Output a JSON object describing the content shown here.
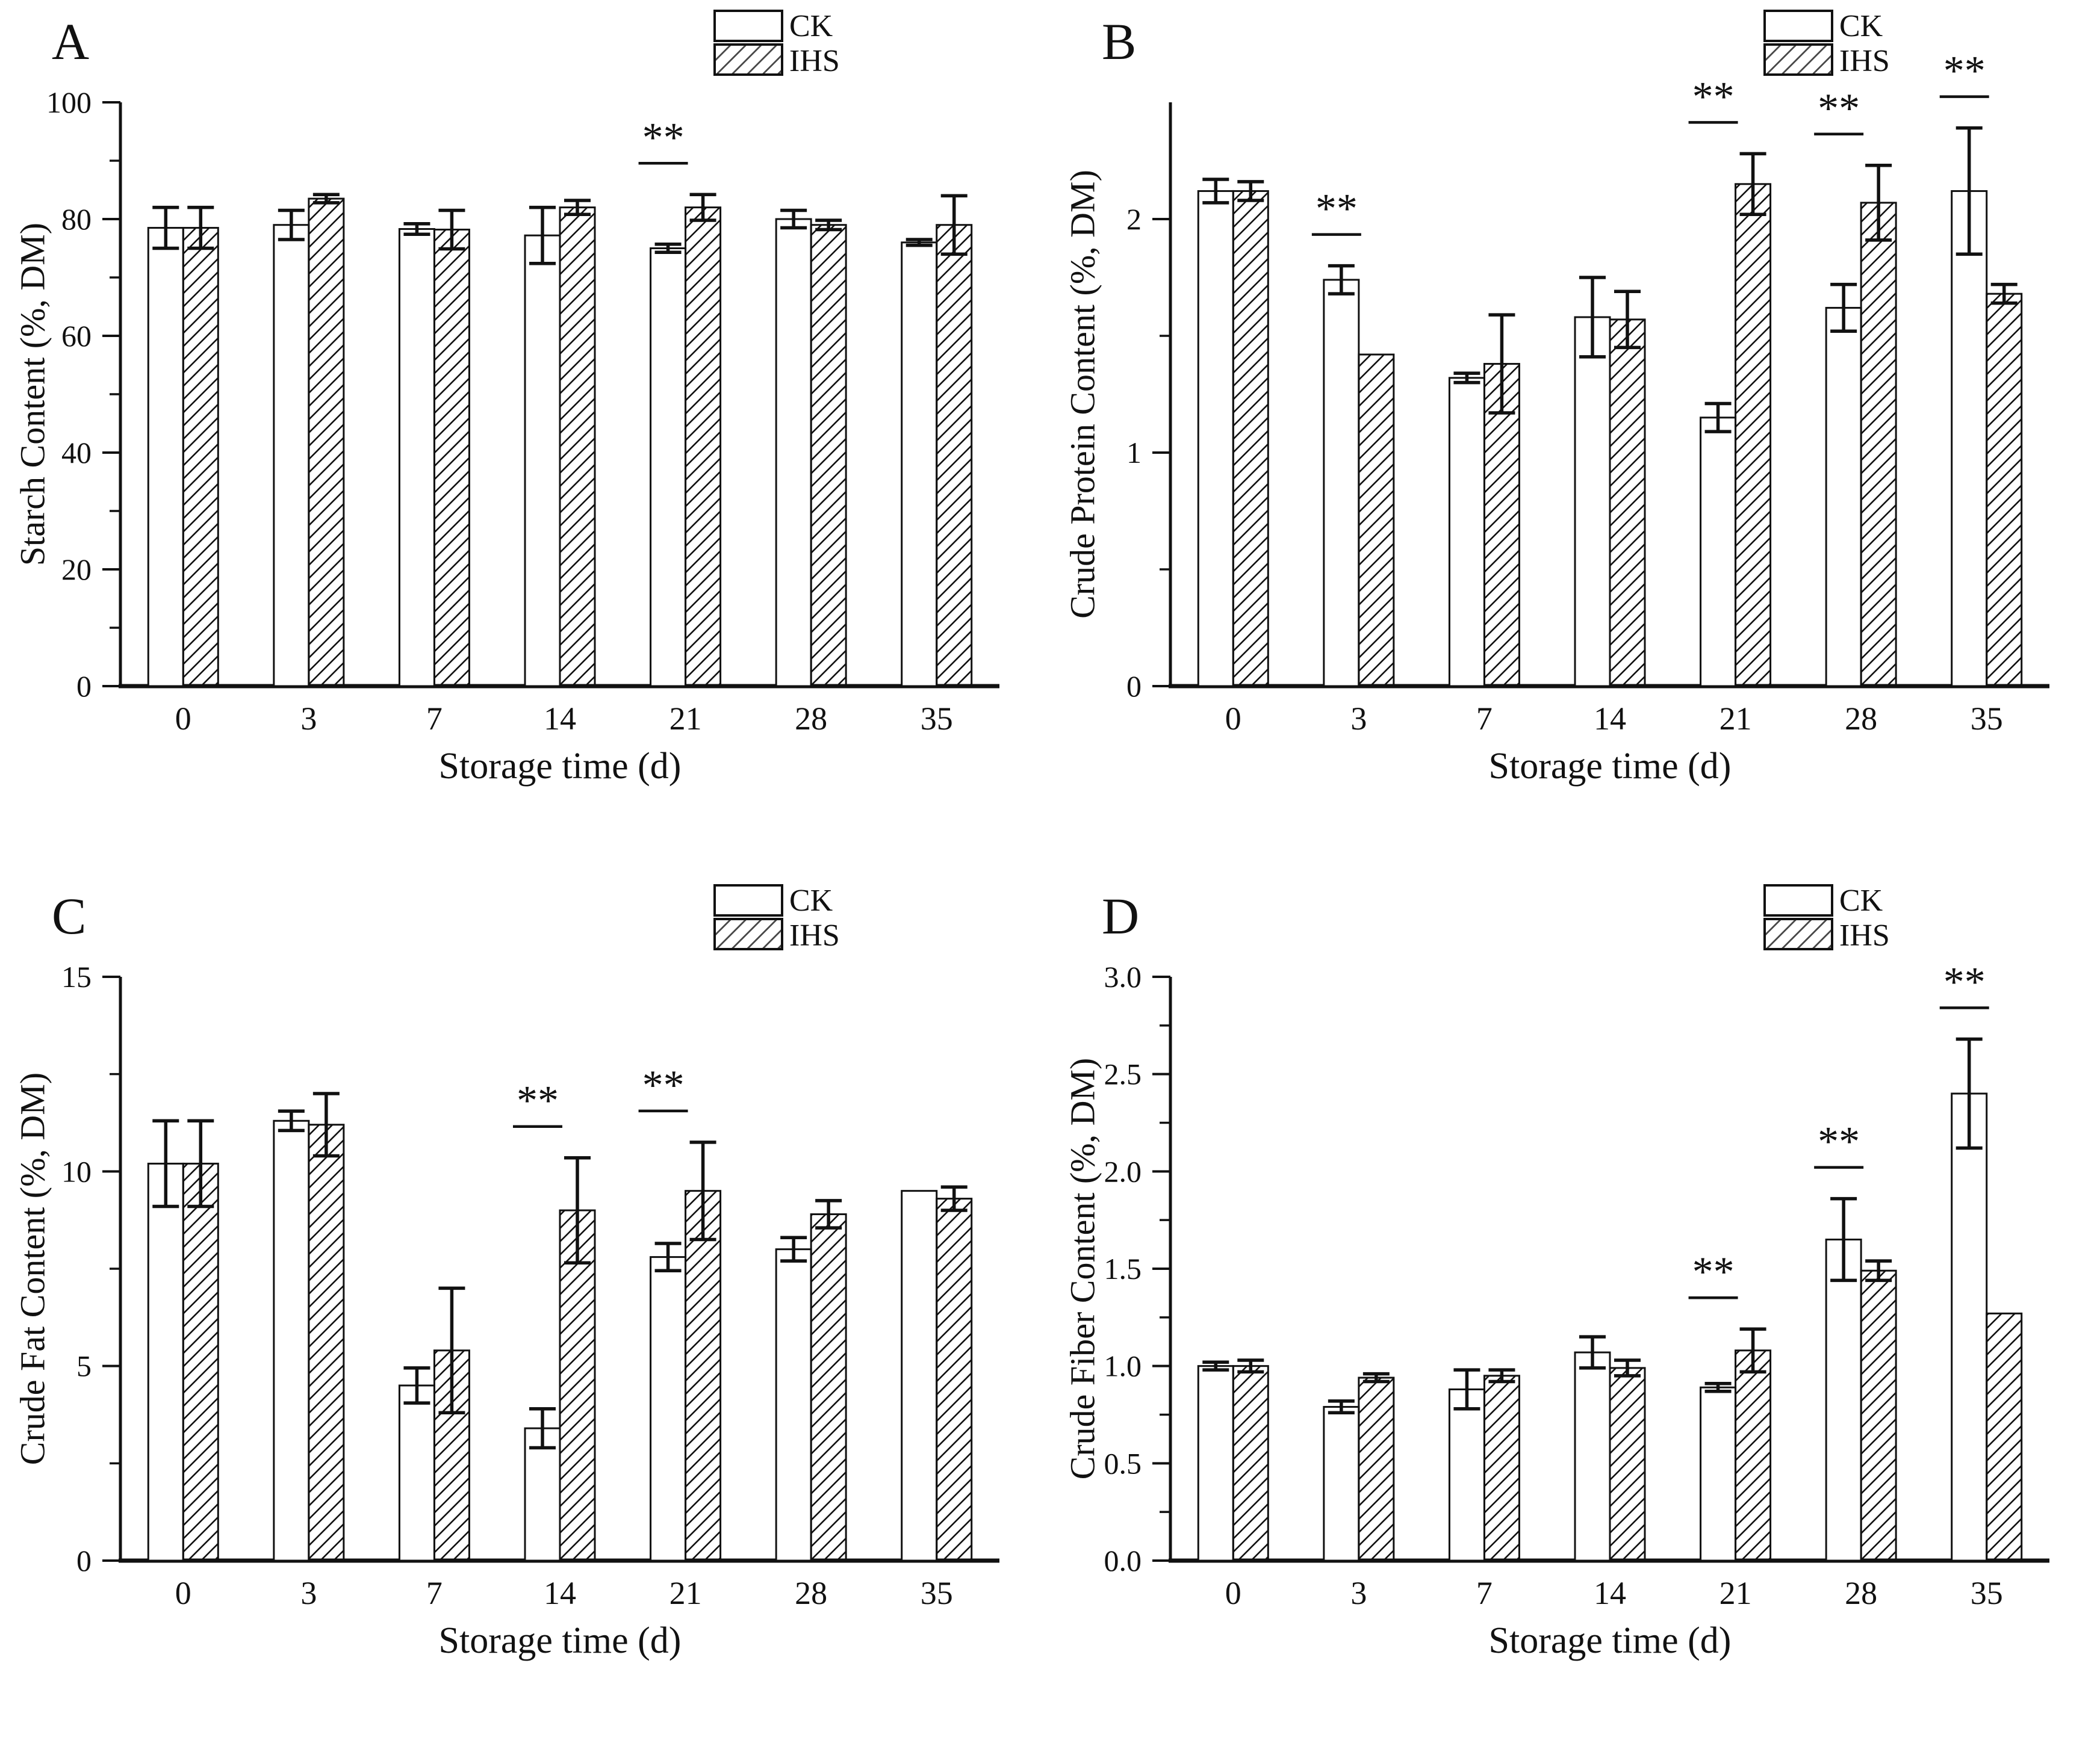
{
  "colors": {
    "ink": "#111111",
    "bar_fill": "#ffffff",
    "background": "#ffffff"
  },
  "legend": {
    "ck_label": "CK",
    "ihs_label": "IHS"
  },
  "chart_data": [
    {
      "id": "A",
      "type": "bar",
      "panel_label": "A",
      "ylabel": "Starch Content (%, DM)",
      "xlabel": "Storage time (d)",
      "ylim": [
        0,
        100
      ],
      "yticks_major": [
        0,
        20,
        40,
        60,
        80,
        100
      ],
      "ytick_labels": [
        "0",
        "20",
        "40",
        "60",
        "80",
        "100"
      ],
      "yticks_minor": [
        10,
        30,
        50,
        70,
        90
      ],
      "categories": [
        "0",
        "3",
        "7",
        "14",
        "21",
        "28",
        "35"
      ],
      "series": [
        {
          "name": "CK",
          "fill": "solid",
          "values": [
            78.5,
            79.0,
            78.3,
            77.2,
            75.0,
            80.0,
            76.0
          ],
          "errors": [
            3.5,
            2.5,
            0.9,
            4.8,
            0.7,
            1.5,
            0.5
          ]
        },
        {
          "name": "IHS",
          "fill": "hatch",
          "values": [
            78.5,
            83.5,
            78.2,
            82.0,
            82.0,
            79.0,
            79.0
          ],
          "errors": [
            3.5,
            0.7,
            3.3,
            1.2,
            2.2,
            0.8,
            5.0
          ]
        }
      ],
      "significance": [
        {
          "category_index": 4,
          "label": "**"
        }
      ],
      "legend_position": "top-right",
      "grid": false
    },
    {
      "id": "B",
      "type": "bar",
      "panel_label": "B",
      "ylabel": "Crude Protein Content (%, DM)",
      "xlabel": "Storage time (d)",
      "ylim": [
        0,
        2.5
      ],
      "yticks_major": [
        0,
        1,
        2
      ],
      "ytick_labels": [
        "0",
        "1",
        "2"
      ],
      "yticks_minor": [
        0.5,
        1.5
      ],
      "categories": [
        "0",
        "3",
        "7",
        "14",
        "21",
        "28",
        "35"
      ],
      "series": [
        {
          "name": "CK",
          "fill": "solid",
          "values": [
            2.12,
            1.74,
            1.32,
            1.58,
            1.15,
            1.62,
            2.12
          ],
          "errors": [
            0.05,
            0.06,
            0.02,
            0.17,
            0.06,
            0.1,
            0.27
          ]
        },
        {
          "name": "IHS",
          "fill": "hatch",
          "values": [
            2.12,
            1.42,
            1.38,
            1.57,
            2.15,
            2.07,
            1.68
          ],
          "errors": [
            0.04,
            0,
            0.21,
            0.12,
            0.13,
            0.16,
            0.04
          ]
        }
      ],
      "significance": [
        {
          "category_index": 1,
          "label": "**"
        },
        {
          "category_index": 4,
          "label": "**"
        },
        {
          "category_index": 5,
          "label": "**"
        },
        {
          "category_index": 6,
          "label": "**"
        }
      ],
      "legend_position": "top-right",
      "grid": false
    },
    {
      "id": "C",
      "type": "bar",
      "panel_label": "C",
      "ylabel": "Crude Fat Content (%, DM)",
      "xlabel": "Storage time (d)",
      "ylim": [
        0,
        15
      ],
      "yticks_major": [
        0,
        5,
        10,
        15
      ],
      "ytick_labels": [
        "0",
        "5",
        "10",
        "15"
      ],
      "yticks_minor": [
        2.5,
        7.5,
        12.5
      ],
      "categories": [
        "0",
        "3",
        "7",
        "14",
        "21",
        "28",
        "35"
      ],
      "series": [
        {
          "name": "CK",
          "fill": "solid",
          "values": [
            10.2,
            11.3,
            4.5,
            3.4,
            7.8,
            8.0,
            9.5
          ],
          "errors": [
            1.1,
            0.25,
            0.45,
            0.5,
            0.35,
            0.3,
            0
          ]
        },
        {
          "name": "IHS",
          "fill": "hatch",
          "values": [
            10.2,
            11.2,
            5.4,
            9.0,
            9.5,
            8.9,
            9.3
          ],
          "errors": [
            1.1,
            0.8,
            1.6,
            1.35,
            1.25,
            0.35,
            0.3
          ]
        }
      ],
      "significance": [
        {
          "category_index": 3,
          "label": "**"
        },
        {
          "category_index": 4,
          "label": "**"
        }
      ],
      "legend_position": "top-right",
      "grid": false
    },
    {
      "id": "D",
      "type": "bar",
      "panel_label": "D",
      "ylabel": "Crude Fiber Content (%, DM)",
      "xlabel": "Storage time (d)",
      "ylim": [
        0,
        3.0
      ],
      "yticks_major": [
        0,
        0.5,
        1.0,
        1.5,
        2.0,
        2.5,
        3.0
      ],
      "ytick_labels": [
        "0.0",
        "0.5",
        "1.0",
        "1.5",
        "2.0",
        "2.5",
        "3.0"
      ],
      "yticks_minor": [
        0.25,
        0.75,
        1.25,
        1.75,
        2.25,
        2.75
      ],
      "categories": [
        "0",
        "3",
        "7",
        "14",
        "21",
        "28",
        "35"
      ],
      "series": [
        {
          "name": "CK",
          "fill": "solid",
          "values": [
            1.0,
            0.79,
            0.88,
            1.07,
            0.89,
            1.65,
            2.4
          ],
          "errors": [
            0.02,
            0.03,
            0.1,
            0.08,
            0.02,
            0.21,
            0.28
          ]
        },
        {
          "name": "IHS",
          "fill": "hatch",
          "values": [
            1.0,
            0.94,
            0.95,
            0.99,
            1.08,
            1.49,
            1.27
          ],
          "errors": [
            0.03,
            0.02,
            0.03,
            0.04,
            0.11,
            0.05,
            0
          ]
        }
      ],
      "significance": [
        {
          "category_index": 4,
          "label": "**"
        },
        {
          "category_index": 5,
          "label": "**"
        },
        {
          "category_index": 6,
          "label": "**"
        }
      ],
      "legend_position": "top-right",
      "grid": false
    }
  ]
}
